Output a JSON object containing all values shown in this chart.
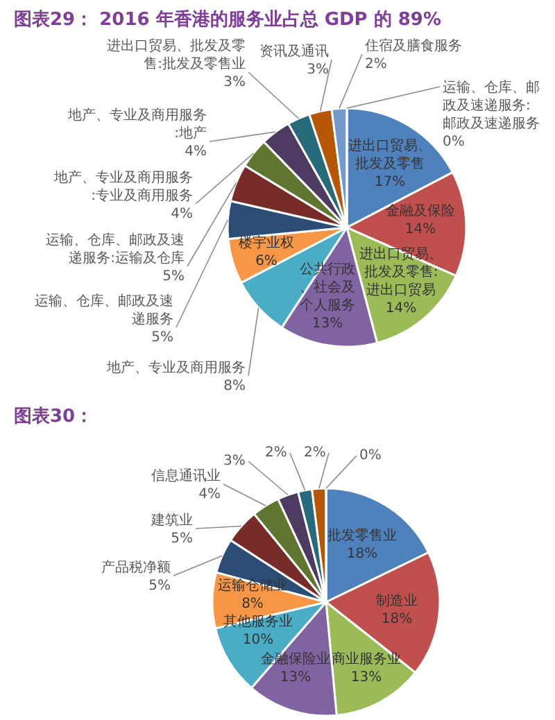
{
  "chart_data": [
    {
      "type": "pie",
      "title": "图表29： 2016 年香港的服务业占总 GDP 的 89%",
      "categories": [
        "进出口贸易、批发及零售",
        "金融及保险",
        "进出口贸易、批发及零售:进出口贸易",
        "公共行政、社会及个人服务",
        "地产、专业及商用服务",
        "楼宇业权",
        "运输、仓库、邮政及速递服务",
        "运输、仓库、邮政及速递服务:运输及仓库",
        "地产、专业及商用服务:专业及商用服务",
        "地产、专业及商用服务:地产",
        "进出口贸易、批发及零售:批发及零售业",
        "资讯及通讯",
        "住宿及膳食服务",
        "运输、仓库、邮政及速递服务:邮政及速递服务"
      ],
      "values": [
        17,
        14,
        14,
        13,
        8,
        6,
        5,
        5,
        4,
        4,
        3,
        3,
        2,
        0
      ],
      "value_labels": [
        "17%",
        "14%",
        "14%",
        "13%",
        "8%",
        "6%",
        "5%",
        "5%",
        "4%",
        "4%",
        "3%",
        "3%",
        "2%",
        "0%"
      ],
      "colors": [
        "#4f81bd",
        "#c0504d",
        "#9bbb59",
        "#8064a2",
        "#4bacc6",
        "#f79646",
        "#2c4d75",
        "#772c2a",
        "#5f7530",
        "#4d3b62",
        "#276a7c",
        "#b65708",
        "#729aca",
        "#d19392"
      ]
    },
    {
      "type": "pie",
      "title": "图表30：",
      "categories": [
        "批发零售业",
        "制造业",
        "商业服务业",
        "金融保险业",
        "其他服务业",
        "运输仓储业",
        "产品税净额",
        "建筑业",
        "信息通讯业",
        null,
        null,
        null,
        null
      ],
      "values": [
        18,
        18,
        13,
        13,
        10,
        8,
        5,
        5,
        4,
        3,
        2,
        2,
        0
      ],
      "value_labels": [
        "18%",
        "18%",
        "13%",
        "13%",
        "10%",
        "8%",
        "5%",
        "5%",
        "4%",
        "3%",
        "2%",
        "2%",
        "0%"
      ],
      "colors": [
        "#4f81bd",
        "#c0504d",
        "#9bbb59",
        "#8064a2",
        "#4bacc6",
        "#f79646",
        "#2c4d75",
        "#772c2a",
        "#5f7530",
        "#4d3b62",
        "#276a7c",
        "#b65708",
        "#729aca"
      ]
    }
  ]
}
